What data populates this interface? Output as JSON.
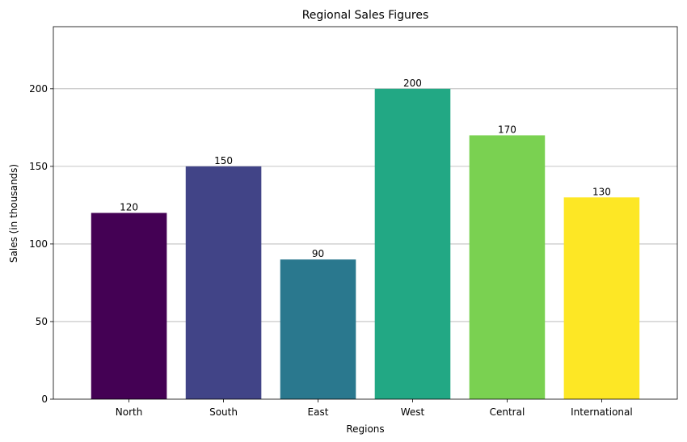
{
  "chart_data": {
    "type": "bar",
    "title": "Regional Sales Figures",
    "xlabel": "Regions",
    "ylabel": "Sales (in thousands)",
    "categories": [
      "North",
      "South",
      "East",
      "West",
      "Central",
      "International"
    ],
    "values": [
      120,
      150,
      90,
      200,
      170,
      130
    ],
    "data_labels": [
      "120",
      "150",
      "90",
      "200",
      "170",
      "130"
    ],
    "colors": [
      "#440154",
      "#414487",
      "#2a788e",
      "#22a884",
      "#7ad151",
      "#fde725"
    ],
    "ylim": [
      0,
      240
    ],
    "yticks": [
      0,
      50,
      100,
      150,
      200
    ],
    "ytick_labels": [
      "0",
      "50",
      "100",
      "150",
      "200"
    ],
    "grid": "horizontal",
    "legend": "none"
  }
}
